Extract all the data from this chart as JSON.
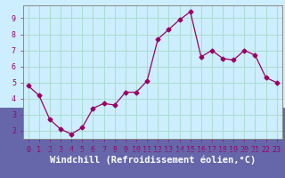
{
  "x": [
    0,
    1,
    2,
    3,
    4,
    5,
    6,
    7,
    8,
    9,
    10,
    11,
    12,
    13,
    14,
    15,
    16,
    17,
    18,
    19,
    20,
    21,
    22,
    23
  ],
  "y": [
    4.8,
    4.2,
    2.7,
    2.1,
    1.8,
    2.2,
    3.4,
    3.7,
    3.6,
    4.4,
    4.4,
    5.1,
    7.7,
    8.3,
    8.9,
    9.4,
    6.6,
    7.0,
    6.5,
    6.4,
    7.0,
    6.7,
    5.3,
    5.0
  ],
  "line_color": "#990066",
  "marker": "D",
  "marker_size": 2.5,
  "bg_color": "#cceeff",
  "grid_color": "#aaddcc",
  "xlabel": "Windchill (Refroidissement éolien,°C)",
  "tick_label_color": "#990066",
  "tick_fontsize": 6,
  "ylim": [
    1.5,
    9.8
  ],
  "xlim": [
    -0.5,
    23.5
  ],
  "yticks": [
    2,
    3,
    4,
    5,
    6,
    7,
    8,
    9
  ],
  "xticks": [
    0,
    1,
    2,
    3,
    4,
    5,
    6,
    7,
    8,
    9,
    10,
    11,
    12,
    13,
    14,
    15,
    16,
    17,
    18,
    19,
    20,
    21,
    22,
    23
  ],
  "spine_color": "#888888",
  "axis_bg_color": "#cceeff",
  "bottom_label_bg": "#6666aa",
  "xlabel_fontsize": 7.5,
  "xlabel_color": "white"
}
